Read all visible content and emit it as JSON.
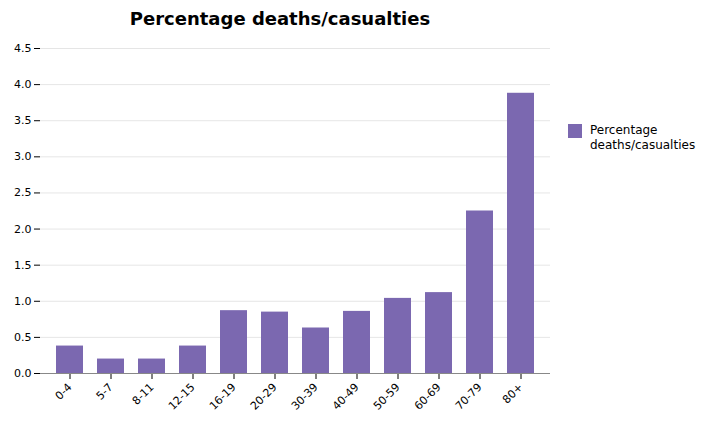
{
  "chart_data": {
    "type": "bar",
    "title": "Percentage deaths/casualties",
    "categories": [
      "0-4",
      "5-7",
      "8-11",
      "12-15",
      "16-19",
      "20-29",
      "30-39",
      "40-49",
      "50-59",
      "60-69",
      "70-79",
      "80+"
    ],
    "series": [
      {
        "name": "Percentage\ndeaths/casualties",
        "color": "#7b68b0",
        "values": [
          0.38,
          0.2,
          0.2,
          0.38,
          0.87,
          0.85,
          0.63,
          0.86,
          1.04,
          1.12,
          2.25,
          3.88
        ]
      }
    ],
    "ylim": [
      0,
      4.5
    ],
    "yticks": [
      {
        "value": 0.0,
        "label": "0.0"
      },
      0.5,
      {
        "value": 1.0,
        "label": "1.0"
      },
      1.5,
      {
        "value": 2.0,
        "label": "2.0"
      },
      2.5,
      {
        "value": 3.0,
        "label": "3.0"
      },
      3.5,
      {
        "value": 4.0,
        "label": "4.0"
      },
      4.5
    ],
    "grid": true,
    "legend": "right"
  }
}
